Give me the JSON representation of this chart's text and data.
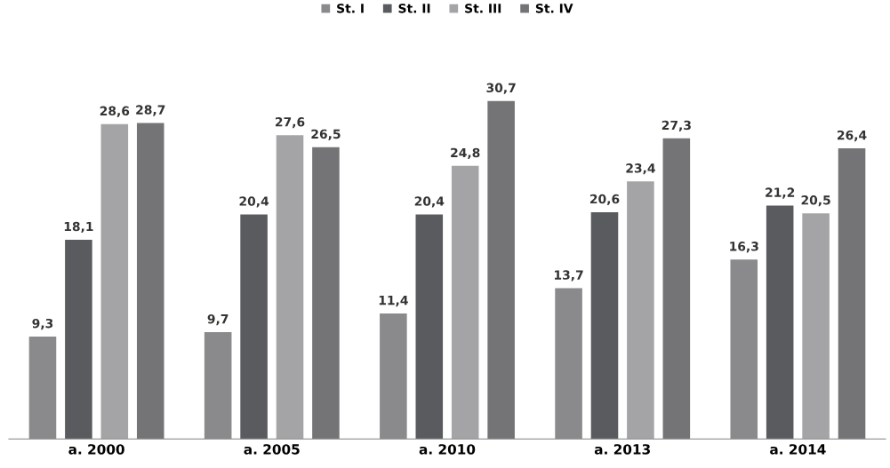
{
  "chart_data": {
    "type": "bar",
    "categories": [
      "a. 2000",
      "a. 2005",
      "a. 2010",
      "a. 2013",
      "a. 2014"
    ],
    "series": [
      {
        "name": "St. I",
        "color": "#8a8a8c",
        "values": [
          9.3,
          9.7,
          11.4,
          13.7,
          16.3
        ],
        "value_labels": [
          "9,3",
          "9,7",
          "11,4",
          "13,7",
          "16,3"
        ]
      },
      {
        "name": "St. II",
        "color": "#5a5b5e",
        "values": [
          18.1,
          20.4,
          20.4,
          20.6,
          21.2
        ],
        "value_labels": [
          "18,1",
          "20,4",
          "20,4",
          "20,6",
          "21,2"
        ]
      },
      {
        "name": "St. III",
        "color": "#a4a4a6",
        "values": [
          28.6,
          27.6,
          24.8,
          23.4,
          20.5
        ],
        "value_labels": [
          "28,6",
          "27,6",
          "24,8",
          "23,4",
          "20,5"
        ]
      },
      {
        "name": "St. IV",
        "color": "#747477",
        "values": [
          28.7,
          26.5,
          30.7,
          27.3,
          26.4
        ],
        "value_labels": [
          "28,7",
          "26,5",
          "30,7",
          "27,3",
          "26,4"
        ]
      }
    ],
    "legend": "top",
    "grid": false
  }
}
